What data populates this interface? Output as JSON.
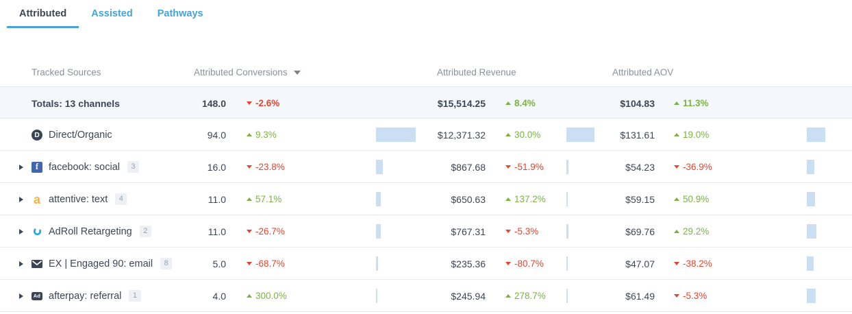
{
  "tabs": {
    "items": [
      {
        "label": "Attributed",
        "active": true
      },
      {
        "label": "Assisted",
        "active": false
      },
      {
        "label": "Pathways",
        "active": false
      }
    ]
  },
  "table": {
    "headers": {
      "sources": "Tracked Sources",
      "conversions": "Attributed Conversions",
      "revenue": "Attributed Revenue",
      "aov": "Attributed AOV"
    },
    "totals": {
      "label": "Totals: 13 channels",
      "conversions": {
        "display": "148.0",
        "delta": "-2.6%",
        "direction": "down"
      },
      "revenue": {
        "display": "$15,514.25",
        "delta": "8.4%",
        "direction": "up"
      },
      "aov": {
        "display": "$104.83",
        "delta": "11.3%",
        "direction": "up"
      }
    },
    "rows": [
      {
        "source": "Direct/Organic",
        "icon": "direct-organic",
        "expandable": false,
        "badge": null,
        "conversions": {
          "display": "94.0",
          "value": 94.0,
          "delta": "9.3%",
          "direction": "up"
        },
        "revenue": {
          "display": "$12,371.32",
          "value": 12371.32,
          "delta": "30.0%",
          "direction": "up"
        },
        "aov": {
          "display": "$131.61",
          "value": 131.61,
          "delta": "19.0%",
          "direction": "up"
        }
      },
      {
        "source": "facebook: social",
        "icon": "facebook",
        "expandable": true,
        "badge": "3",
        "conversions": {
          "display": "16.0",
          "value": 16.0,
          "delta": "-23.8%",
          "direction": "down"
        },
        "revenue": {
          "display": "$867.68",
          "value": 867.68,
          "delta": "-51.9%",
          "direction": "down"
        },
        "aov": {
          "display": "$54.23",
          "value": 54.23,
          "delta": "-36.9%",
          "direction": "down"
        }
      },
      {
        "source": "attentive: text",
        "icon": "attentive",
        "expandable": true,
        "badge": "4",
        "conversions": {
          "display": "11.0",
          "value": 11.0,
          "delta": "57.1%",
          "direction": "up"
        },
        "revenue": {
          "display": "$650.63",
          "value": 650.63,
          "delta": "137.2%",
          "direction": "up"
        },
        "aov": {
          "display": "$59.15",
          "value": 59.15,
          "delta": "50.9%",
          "direction": "up"
        }
      },
      {
        "source": "AdRoll Retargeting",
        "icon": "adroll",
        "expandable": true,
        "badge": "2",
        "conversions": {
          "display": "11.0",
          "value": 11.0,
          "delta": "-26.7%",
          "direction": "down"
        },
        "revenue": {
          "display": "$767.31",
          "value": 767.31,
          "delta": "-5.3%",
          "direction": "down"
        },
        "aov": {
          "display": "$69.76",
          "value": 69.76,
          "delta": "29.2%",
          "direction": "up"
        }
      },
      {
        "source": "EX | Engaged 90: email",
        "icon": "email",
        "expandable": true,
        "badge": "8",
        "conversions": {
          "display": "5.0",
          "value": 5.0,
          "delta": "-68.7%",
          "direction": "down"
        },
        "revenue": {
          "display": "$235.36",
          "value": 235.36,
          "delta": "-80.7%",
          "direction": "down"
        },
        "aov": {
          "display": "$47.07",
          "value": 47.07,
          "delta": "-38.2%",
          "direction": "down"
        }
      },
      {
        "source": "afterpay: referral",
        "icon": "afterpay",
        "expandable": true,
        "badge": "1",
        "conversions": {
          "display": "4.0",
          "value": 4.0,
          "delta": "300.0%",
          "direction": "up"
        },
        "revenue": {
          "display": "$245.94",
          "value": 245.94,
          "delta": "278.7%",
          "direction": "up"
        },
        "aov": {
          "display": "$61.49",
          "value": 61.49,
          "delta": "-5.3%",
          "direction": "down"
        }
      }
    ]
  },
  "icon_glyphs": {
    "direct-organic": "D",
    "facebook": "f",
    "attentive": "a",
    "afterpay": "Ad"
  },
  "colors": {
    "positive": "#7bb342",
    "negative": "#e5442e",
    "bar": "#cbdff4",
    "accent": "#42a4dc"
  }
}
